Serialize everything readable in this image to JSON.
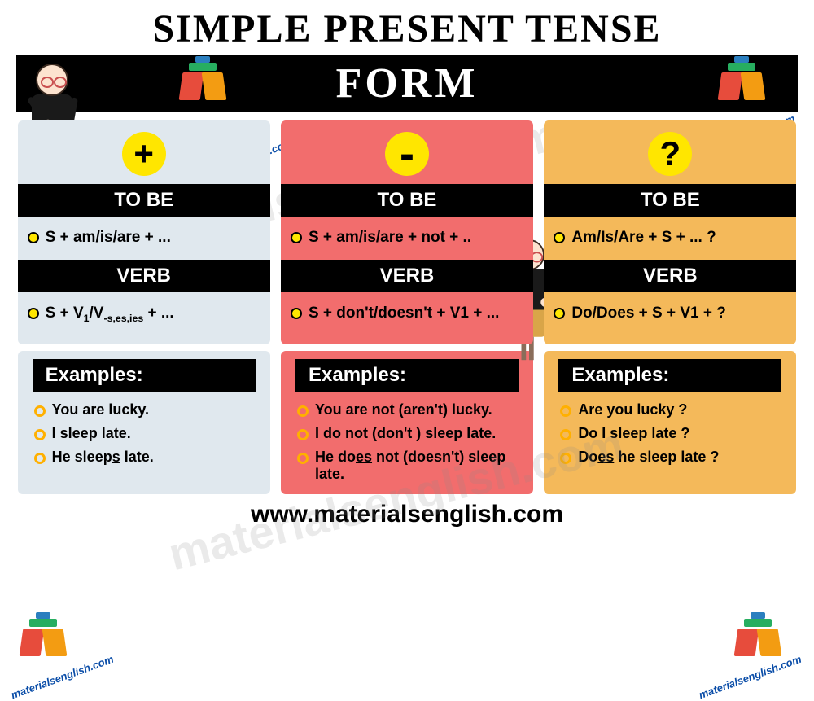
{
  "title": "SIMPLE PRESENT TENSE",
  "banner": "FORM",
  "footer_url": "www.materialsenglish.com",
  "watermark_text": "materialsenglish.com",
  "site_tag": "materialsenglish.com",
  "colors": {
    "positive_bg": "#e0e8ee",
    "negative_bg": "#f26d6d",
    "question_bg": "#f4b95a",
    "symbol_bg": "#ffe600",
    "header_bg": "#000000"
  },
  "columns": [
    {
      "symbol": "+",
      "sections": [
        {
          "label": "TO BE",
          "rule": "S + am/is/are + ..."
        },
        {
          "label": "VERB",
          "rule_html": "S + V<sub>1</sub>/V<sub>-s,es,ies</sub> + ..."
        }
      ],
      "examples_header": "Examples:",
      "examples": [
        "You are lucky.",
        "I sleep late.",
        "He sleep<u>s</u> late."
      ]
    },
    {
      "symbol": "-",
      "sections": [
        {
          "label": "TO BE",
          "rule": "S + am/is/are + not + .."
        },
        {
          "label": "VERB",
          "rule": "S + don't/doesn't + V1 + ..."
        }
      ],
      "examples_header": "Examples:",
      "examples": [
        "You are not (aren't)  lucky.",
        "I do not (don't ) sleep late.",
        "He do<u>es</u> not (doesn't) sleep late."
      ]
    },
    {
      "symbol": "?",
      "sections": [
        {
          "label": "TO BE",
          "rule": "Am/Is/Are + S + ... ?"
        },
        {
          "label": "VERB",
          "rule": "Do/Does + S + V1 + ?"
        }
      ],
      "examples_header": "Examples:",
      "examples": [
        "Are you lucky ?",
        "Do I sleep late ?",
        "Do<u>es</u> he sleep late ?"
      ]
    }
  ]
}
